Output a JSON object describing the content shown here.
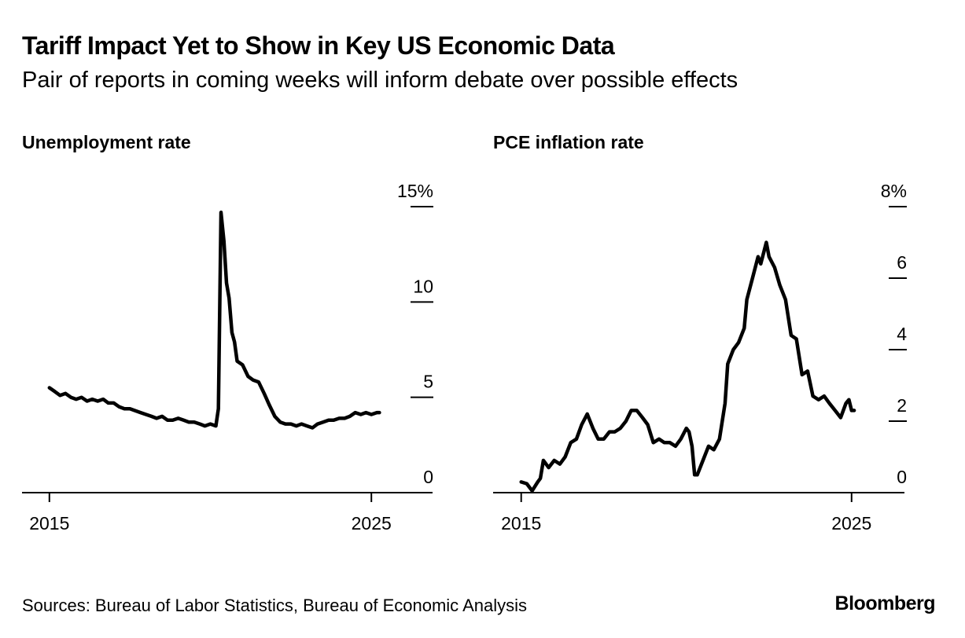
{
  "header": {
    "title": "Tariff Impact Yet to Show in Key US Economic Data",
    "subtitle": "Pair of reports in coming weeks will inform debate over possible effects"
  },
  "footer": {
    "source": "Sources: Bureau of Labor Statistics, Bureau of Economic Analysis",
    "logo": "Bloomberg"
  },
  "colors": {
    "line": "#000000",
    "background": "#ffffff"
  },
  "chart_data": [
    {
      "type": "line",
      "title": "Unemployment rate",
      "xlabel": "",
      "ylabel": "",
      "x_ticks": [
        {
          "value": 2015,
          "label": "2015"
        },
        {
          "value": 2025,
          "label": "2025"
        }
      ],
      "y_ticks": [
        {
          "value": 0,
          "label": "0"
        },
        {
          "value": 5,
          "label": "5"
        },
        {
          "value": 10,
          "label": "10"
        },
        {
          "value": 15,
          "label": "15%"
        }
      ],
      "xlim": [
        2014.15,
        2026.9
      ],
      "ylim": [
        0,
        15
      ],
      "grid": false,
      "series": [
        {
          "name": "Unemployment rate",
          "points": [
            [
              2015.0,
              5.5
            ],
            [
              2015.17,
              5.3
            ],
            [
              2015.33,
              5.1
            ],
            [
              2015.5,
              5.2
            ],
            [
              2015.67,
              5.0
            ],
            [
              2015.83,
              4.9
            ],
            [
              2016.0,
              5.0
            ],
            [
              2016.17,
              4.8
            ],
            [
              2016.33,
              4.9
            ],
            [
              2016.5,
              4.8
            ],
            [
              2016.67,
              4.9
            ],
            [
              2016.83,
              4.7
            ],
            [
              2017.0,
              4.7
            ],
            [
              2017.17,
              4.5
            ],
            [
              2017.33,
              4.4
            ],
            [
              2017.5,
              4.4
            ],
            [
              2017.67,
              4.3
            ],
            [
              2017.83,
              4.2
            ],
            [
              2018.0,
              4.1
            ],
            [
              2018.17,
              4.0
            ],
            [
              2018.33,
              3.9
            ],
            [
              2018.5,
              4.0
            ],
            [
              2018.67,
              3.8
            ],
            [
              2018.83,
              3.8
            ],
            [
              2019.0,
              3.9
            ],
            [
              2019.17,
              3.8
            ],
            [
              2019.33,
              3.7
            ],
            [
              2019.5,
              3.7
            ],
            [
              2019.67,
              3.6
            ],
            [
              2019.83,
              3.5
            ],
            [
              2020.0,
              3.6
            ],
            [
              2020.17,
              3.5
            ],
            [
              2020.25,
              4.4
            ],
            [
              2020.33,
              14.7
            ],
            [
              2020.42,
              13.2
            ],
            [
              2020.5,
              11.0
            ],
            [
              2020.58,
              10.2
            ],
            [
              2020.67,
              8.4
            ],
            [
              2020.75,
              7.9
            ],
            [
              2020.83,
              6.9
            ],
            [
              2021.0,
              6.7
            ],
            [
              2021.17,
              6.1
            ],
            [
              2021.33,
              5.9
            ],
            [
              2021.5,
              5.8
            ],
            [
              2021.67,
              5.2
            ],
            [
              2021.83,
              4.6
            ],
            [
              2022.0,
              4.0
            ],
            [
              2022.17,
              3.7
            ],
            [
              2022.33,
              3.6
            ],
            [
              2022.5,
              3.6
            ],
            [
              2022.67,
              3.5
            ],
            [
              2022.83,
              3.6
            ],
            [
              2023.0,
              3.5
            ],
            [
              2023.17,
              3.4
            ],
            [
              2023.33,
              3.6
            ],
            [
              2023.5,
              3.7
            ],
            [
              2023.67,
              3.8
            ],
            [
              2023.83,
              3.8
            ],
            [
              2024.0,
              3.9
            ],
            [
              2024.17,
              3.9
            ],
            [
              2024.33,
              4.0
            ],
            [
              2024.5,
              4.2
            ],
            [
              2024.67,
              4.1
            ],
            [
              2024.83,
              4.2
            ],
            [
              2025.0,
              4.1
            ],
            [
              2025.17,
              4.2
            ],
            [
              2025.25,
              4.2
            ]
          ]
        }
      ]
    },
    {
      "type": "line",
      "title": "PCE inflation rate",
      "xlabel": "",
      "ylabel": "",
      "x_ticks": [
        {
          "value": 2015,
          "label": "2015"
        },
        {
          "value": 2025,
          "label": "2025"
        }
      ],
      "y_ticks": [
        {
          "value": 0,
          "label": "0"
        },
        {
          "value": 2,
          "label": "2"
        },
        {
          "value": 4,
          "label": "4"
        },
        {
          "value": 6,
          "label": "6"
        },
        {
          "value": 8,
          "label": "8%"
        }
      ],
      "xlim": [
        2014.15,
        2026.6
      ],
      "ylim": [
        0,
        8
      ],
      "grid": false,
      "series": [
        {
          "name": "PCE inflation rate",
          "points": [
            [
              2015.0,
              0.3
            ],
            [
              2015.17,
              0.25
            ],
            [
              2015.33,
              0.05
            ],
            [
              2015.5,
              0.3
            ],
            [
              2015.58,
              0.4
            ],
            [
              2015.67,
              0.9
            ],
            [
              2015.83,
              0.7
            ],
            [
              2016.0,
              0.9
            ],
            [
              2016.17,
              0.8
            ],
            [
              2016.33,
              1.0
            ],
            [
              2016.5,
              1.4
            ],
            [
              2016.67,
              1.5
            ],
            [
              2016.83,
              1.9
            ],
            [
              2017.0,
              2.2
            ],
            [
              2017.17,
              1.8
            ],
            [
              2017.33,
              1.5
            ],
            [
              2017.5,
              1.5
            ],
            [
              2017.67,
              1.7
            ],
            [
              2017.83,
              1.7
            ],
            [
              2018.0,
              1.8
            ],
            [
              2018.17,
              2.0
            ],
            [
              2018.33,
              2.3
            ],
            [
              2018.5,
              2.3
            ],
            [
              2018.67,
              2.1
            ],
            [
              2018.83,
              1.9
            ],
            [
              2019.0,
              1.4
            ],
            [
              2019.17,
              1.5
            ],
            [
              2019.33,
              1.4
            ],
            [
              2019.5,
              1.4
            ],
            [
              2019.67,
              1.3
            ],
            [
              2019.83,
              1.5
            ],
            [
              2020.0,
              1.8
            ],
            [
              2020.08,
              1.7
            ],
            [
              2020.17,
              1.3
            ],
            [
              2020.25,
              0.5
            ],
            [
              2020.33,
              0.5
            ],
            [
              2020.5,
              0.9
            ],
            [
              2020.67,
              1.3
            ],
            [
              2020.83,
              1.2
            ],
            [
              2021.0,
              1.5
            ],
            [
              2021.17,
              2.5
            ],
            [
              2021.25,
              3.6
            ],
            [
              2021.42,
              4.0
            ],
            [
              2021.58,
              4.2
            ],
            [
              2021.75,
              4.6
            ],
            [
              2021.83,
              5.4
            ],
            [
              2022.0,
              6.0
            ],
            [
              2022.17,
              6.6
            ],
            [
              2022.25,
              6.4
            ],
            [
              2022.42,
              7.0
            ],
            [
              2022.5,
              6.6
            ],
            [
              2022.67,
              6.3
            ],
            [
              2022.83,
              5.8
            ],
            [
              2023.0,
              5.4
            ],
            [
              2023.17,
              4.4
            ],
            [
              2023.33,
              4.3
            ],
            [
              2023.5,
              3.3
            ],
            [
              2023.67,
              3.4
            ],
            [
              2023.83,
              2.7
            ],
            [
              2024.0,
              2.6
            ],
            [
              2024.17,
              2.7
            ],
            [
              2024.33,
              2.5
            ],
            [
              2024.5,
              2.3
            ],
            [
              2024.67,
              2.1
            ],
            [
              2024.83,
              2.5
            ],
            [
              2024.92,
              2.6
            ],
            [
              2025.0,
              2.3
            ],
            [
              2025.08,
              2.3
            ]
          ]
        }
      ]
    }
  ]
}
